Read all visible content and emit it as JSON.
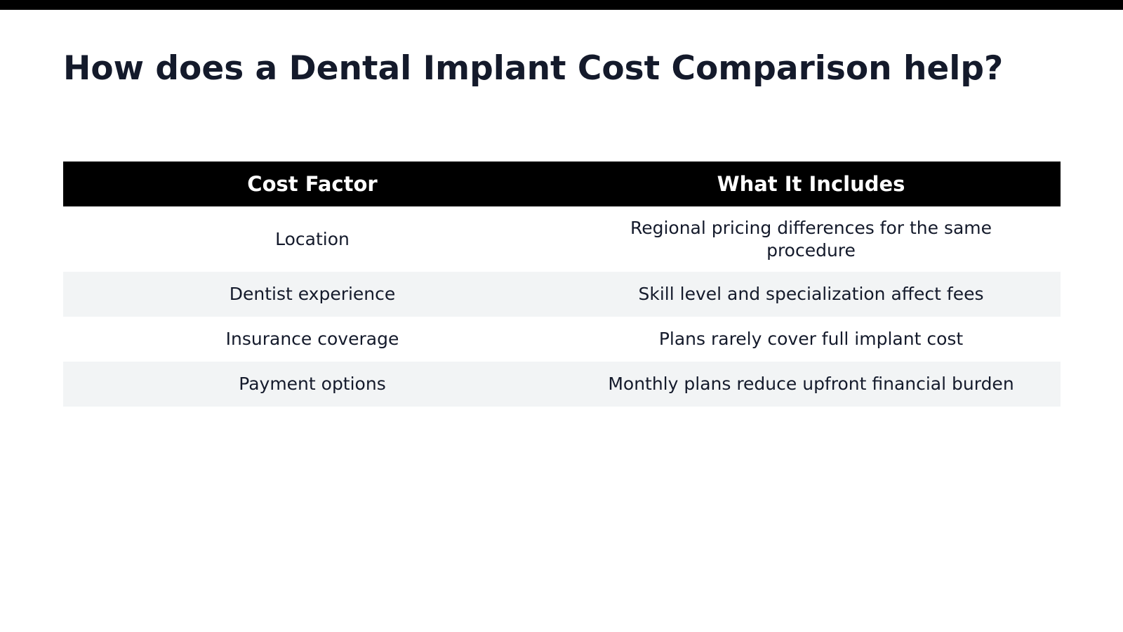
{
  "title": "How does a Dental Implant Cost Comparison help?",
  "colors": {
    "top_bar": "#000000",
    "header_bg": "#000000",
    "header_text": "#ffffff",
    "body_text": "#141a2b",
    "shaded_row": "#f2f4f5"
  },
  "table": {
    "headers": [
      "Cost Factor",
      "What It Includes"
    ],
    "rows": [
      [
        "Location",
        "Regional pricing differences for the same procedure"
      ],
      [
        "Dentist experience",
        "Skill level and specialization affect fees"
      ],
      [
        "Insurance coverage",
        "Plans rarely cover full implant cost"
      ],
      [
        "Payment options",
        "Monthly plans reduce upfront financial burden"
      ]
    ]
  }
}
